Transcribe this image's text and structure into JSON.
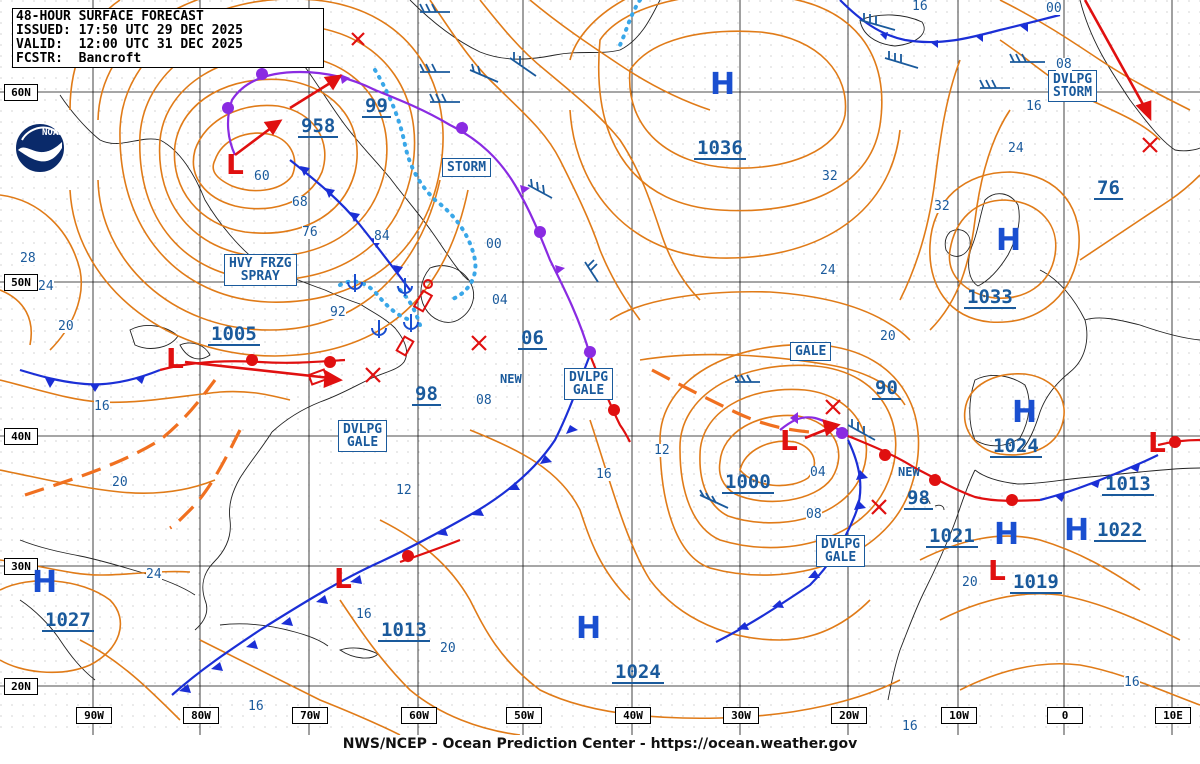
{
  "header": {
    "title": "48-HOUR SURFACE FORECAST",
    "issued": "ISSUED: 17:50 UTC 29 DEC 2025",
    "valid": "VALID:  12:00 UTC 31 DEC 2025",
    "forecaster": "FCSTR:  Bancroft"
  },
  "footer": "NWS/NCEP - Ocean Prediction Center - https://ocean.weather.gov",
  "logo_text": "NOAA",
  "lat_labels": [
    "60N",
    "50N",
    "40N",
    "30N",
    "20N"
  ],
  "lon_labels": [
    "90W",
    "80W",
    "70W",
    "60W",
    "50W",
    "40W",
    "30W",
    "20W",
    "10W",
    "0",
    "10E"
  ],
  "warnings": {
    "storm_mid": "STORM",
    "storm_ne": "DVLPG\nSTORM",
    "spray": "HVY FRZG\nSPRAY",
    "gale_coast": "DVLPG\nGALE",
    "gale_mid": "DVLPG\nGALE",
    "gale_e": "GALE",
    "gale_se": "DVLPG\nGALE"
  },
  "pressures": [
    "958",
    "99",
    "1036",
    "76",
    "1005",
    "06",
    "1033",
    "90",
    "98",
    "1024",
    "1000",
    "98",
    "1013",
    "1021",
    "1022",
    "1019",
    "1013",
    "1024",
    "1027"
  ],
  "highs": [
    "H",
    "H",
    "H",
    "H",
    "H",
    "H",
    "H"
  ],
  "lows": [
    "L",
    "L",
    "L",
    "L",
    "L",
    "L"
  ],
  "new_labels": [
    "NEW",
    "NEW"
  ],
  "isobar_labels": [
    "00",
    "16",
    "08",
    "16",
    "24",
    "32",
    "60",
    "68",
    "76",
    "84",
    "28",
    "24",
    "20",
    "16",
    "20",
    "24",
    "16",
    "16",
    "92",
    "04",
    "00",
    "32",
    "24",
    "20",
    "12",
    "16",
    "04",
    "08",
    "20",
    "12",
    "08",
    "20",
    "16",
    "16"
  ],
  "colors": {
    "isobar": "#e07b18",
    "front_cold": "#1b2fd6",
    "front_warm": "#e01010",
    "front_occluded": "#8a2be2",
    "ice": "#3aa7e8",
    "label": "#1a5a9c",
    "coast": "#222222"
  }
}
